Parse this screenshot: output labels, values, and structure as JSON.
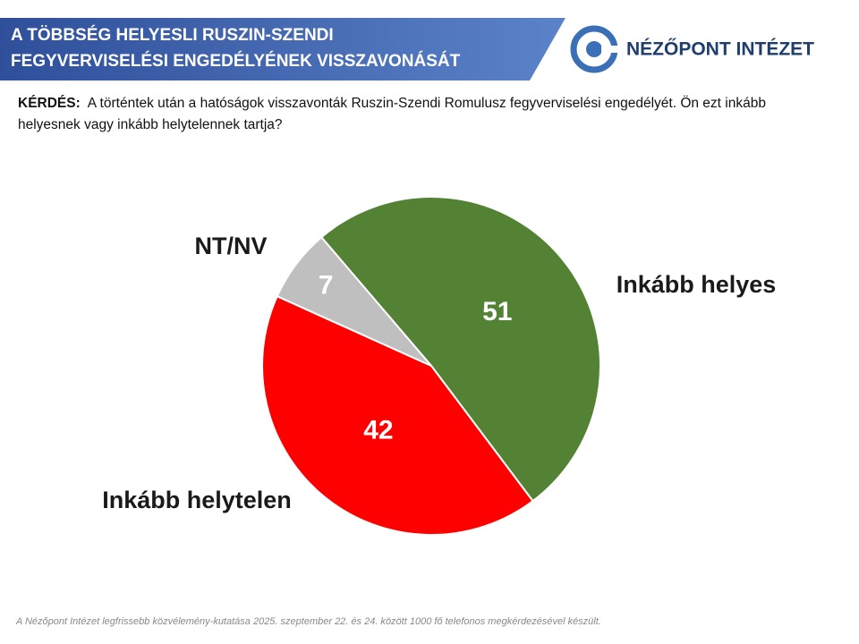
{
  "header": {
    "title_lines": [
      "A TÖBBSÉG HELYESLI RUSZIN-SZENDI",
      "FEGYVERVISELÉSI ENGEDÉLYÉNEK VISSZAVONÁSÁT"
    ],
    "logo": "NÉZŐPONT INTÉZET"
  },
  "question": {
    "label": "KÉRDÉS:",
    "text": "A történtek után a hatóságok visszavonták Ruszin-Szendi Romulusz fegyverviselési engedélyét. Ön ezt inkább helyesnek vagy inkább helytelennek tartja?"
  },
  "chart_data": {
    "type": "pie",
    "categories": [
      "Inkább helyes",
      "Inkább helytelen",
      "NT/NV"
    ],
    "values": [
      51,
      42,
      7
    ],
    "colors": [
      "#548235",
      "#ff0000",
      "#bfbfbf"
    ]
  },
  "footnote": "A Nézőpont Intézet legfrissebb közvélemény-kutatása 2025. szeptember 22. és 24. között 1000 fő telefonos megkérdezésével készült."
}
